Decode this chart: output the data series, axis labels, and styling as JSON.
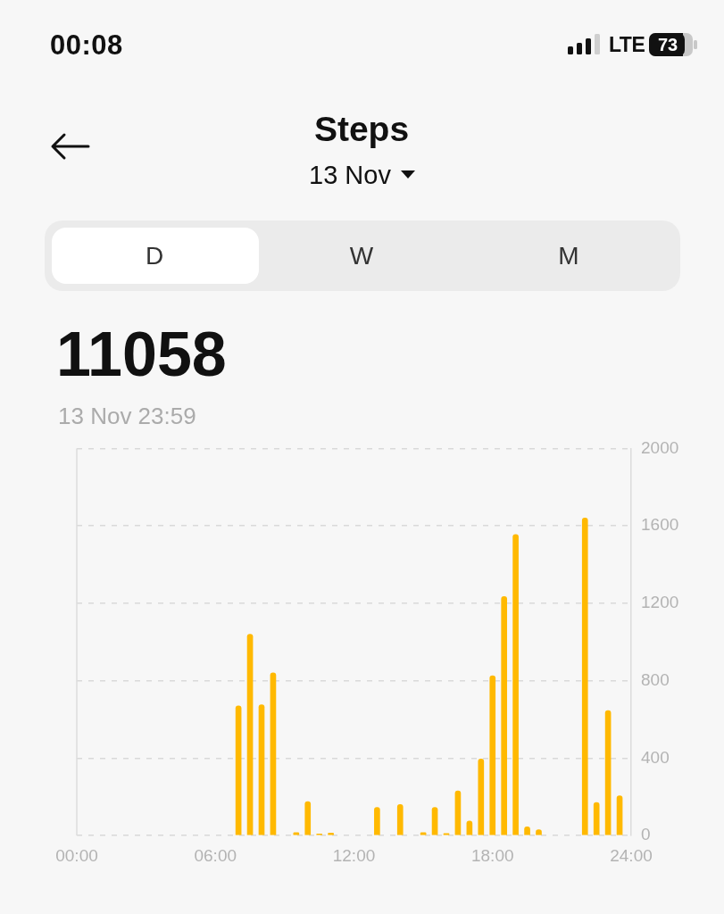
{
  "chart_data": {
    "type": "bar",
    "title": "Steps",
    "subtitle": "13 Nov",
    "annotations": [
      "00:08",
      "LTE",
      "73",
      "D",
      "W",
      "M",
      "11058",
      "13 Nov 23:59"
    ],
    "x": [
      7,
      7.5,
      8,
      8.5,
      9.5,
      10,
      10.5,
      11,
      13,
      14,
      15,
      15.5,
      16,
      16.5,
      17,
      17.5,
      18,
      18.5,
      19,
      19.5,
      20,
      22,
      22.5,
      23,
      23.5
    ],
    "values": [
      670,
      1040,
      675,
      840,
      15,
      175,
      8,
      12,
      145,
      160,
      15,
      145,
      10,
      230,
      75,
      395,
      825,
      1235,
      1555,
      45,
      30,
      1640,
      170,
      645,
      205
    ],
    "color": "#ffb900",
    "xlim": [
      0,
      24
    ],
    "xticks": [
      {
        "value": 0,
        "label": "00:00"
      },
      {
        "value": 6,
        "label": "06:00"
      },
      {
        "value": 12,
        "label": "12:00"
      },
      {
        "value": 18,
        "label": "18:00"
      },
      {
        "value": 24,
        "label": "24:00"
      }
    ],
    "ylim": [
      0,
      2000
    ],
    "yticks": [
      0,
      400,
      800,
      1200,
      1600,
      2000
    ],
    "grid": "y"
  }
}
